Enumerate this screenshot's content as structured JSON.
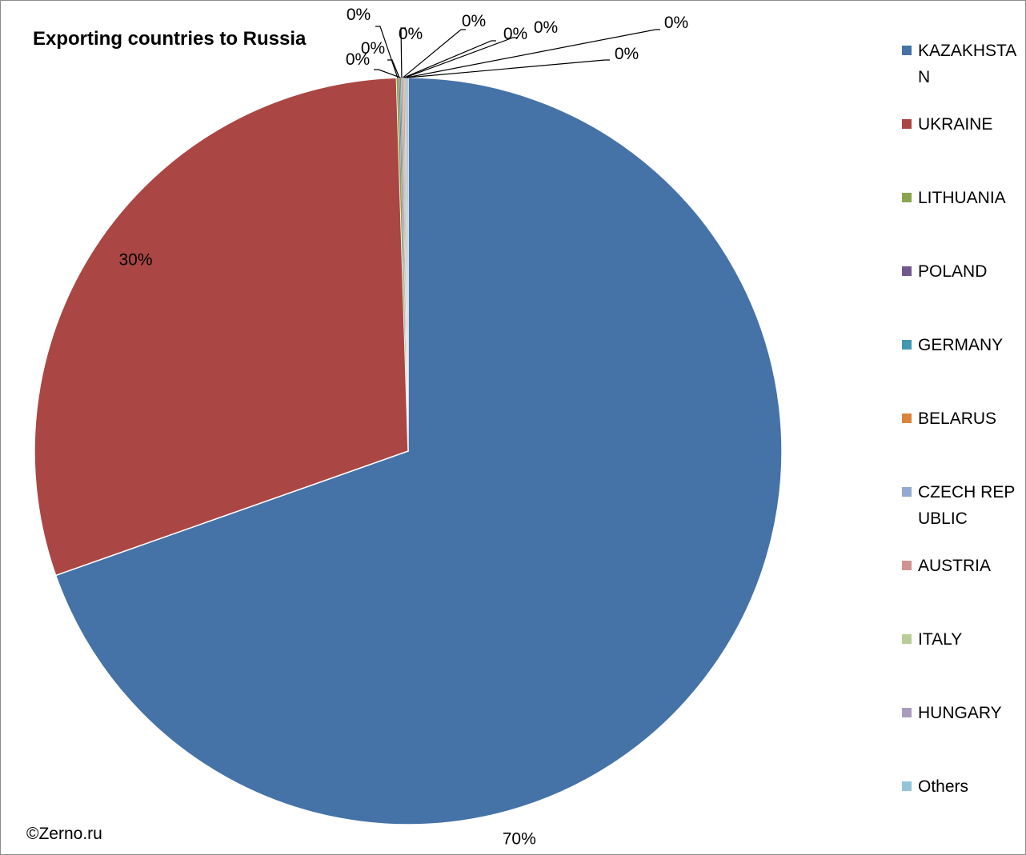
{
  "chart_data": {
    "type": "pie",
    "title": "Exporting countries to Russia",
    "categories": [
      "KAZAKHSTAN",
      "UKRAINE",
      "LITHUANIA",
      "POLAND",
      "GERMANY",
      "BELARUS",
      "CZECH REPUBLIC",
      "AUSTRIA",
      "ITALY",
      "HUNGARY",
      "Others"
    ],
    "values": [
      69.6,
      29.9,
      0.1,
      0.05,
      0.05,
      0.05,
      0.05,
      0.05,
      0.05,
      0.05,
      0.05
    ],
    "data_labels": [
      "70%",
      "30%",
      "0%",
      "0%",
      "0%",
      "0%",
      "0%",
      "0%",
      "0%",
      "0%",
      "0%"
    ],
    "colors": [
      "#4572a7",
      "#aa4643",
      "#89a54e",
      "#71588f",
      "#4198af",
      "#db843d",
      "#93a9cf",
      "#d19392",
      "#b9cd96",
      "#a99bbd",
      "#92c5d8"
    ],
    "legend_position": "right",
    "start_angle_deg": 0,
    "direction": "clockwise"
  },
  "credit": "©Zerno.ru"
}
